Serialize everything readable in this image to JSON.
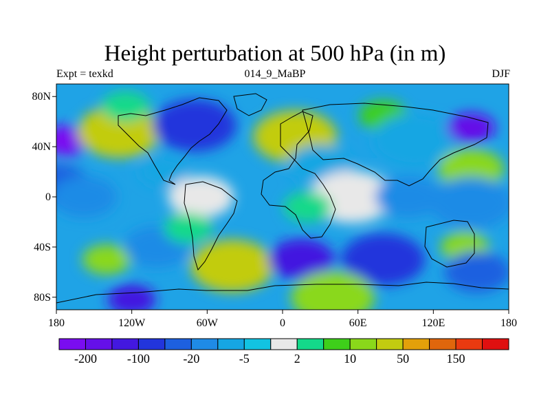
{
  "map": {
    "title": "Height perturbation at 500 hPa (in m)",
    "experiment": "Expt = texkd",
    "period": "014_9_MaBP",
    "season": "DJF",
    "projection": "cylindrical equidistant",
    "lon_range": [
      -180,
      180
    ],
    "lat_range": [
      -90,
      90
    ],
    "lon_ticks": [
      {
        "lon": -180,
        "label": "180"
      },
      {
        "lon": -120,
        "label": "120W"
      },
      {
        "lon": -60,
        "label": "60W"
      },
      {
        "lon": 0,
        "label": "0"
      },
      {
        "lon": 60,
        "label": "60E"
      },
      {
        "lon": 120,
        "label": "120E"
      },
      {
        "lon": 180,
        "label": "180"
      }
    ],
    "lat_ticks": [
      {
        "lat": 80,
        "label": "80N"
      },
      {
        "lat": 40,
        "label": "40N"
      },
      {
        "lat": 0,
        "label": "0"
      },
      {
        "lat": -40,
        "label": "40S"
      },
      {
        "lat": -80,
        "label": "80S"
      }
    ],
    "features": [
      {
        "lon": -172,
        "lat": 45,
        "level": 0
      },
      {
        "lon": -180,
        "lat": 10,
        "level": 4
      },
      {
        "lon": -130,
        "lat": 52,
        "level": 12
      },
      {
        "lon": -125,
        "lat": 72,
        "level": 9
      },
      {
        "lon": -158,
        "lat": 0,
        "level": 5
      },
      {
        "lon": -70,
        "lat": 57,
        "level": 3
      },
      {
        "lon": -95,
        "lat": 20,
        "level": 6
      },
      {
        "lon": -65,
        "lat": 0,
        "level": 8
      },
      {
        "lon": 10,
        "lat": 48,
        "level": 12
      },
      {
        "lon": 80,
        "lat": 65,
        "level": 10
      },
      {
        "lon": 30,
        "lat": 25,
        "level": 6
      },
      {
        "lon": 55,
        "lat": 0,
        "level": 8
      },
      {
        "lon": 20,
        "lat": -8,
        "level": 9
      },
      {
        "lon": 100,
        "lat": 0,
        "level": 5
      },
      {
        "lon": 105,
        "lat": 45,
        "level": 6
      },
      {
        "lon": 150,
        "lat": 55,
        "level": 1
      },
      {
        "lon": 150,
        "lat": 22,
        "level": 11
      },
      {
        "lon": 150,
        "lat": -5,
        "level": 5
      },
      {
        "lon": -140,
        "lat": -50,
        "level": 11
      },
      {
        "lon": -100,
        "lat": -40,
        "level": 5
      },
      {
        "lon": -40,
        "lat": -55,
        "level": 12
      },
      {
        "lon": -75,
        "lat": -25,
        "level": 9
      },
      {
        "lon": 15,
        "lat": -50,
        "level": 2
      },
      {
        "lon": 80,
        "lat": -50,
        "level": 3
      },
      {
        "lon": 145,
        "lat": -40,
        "level": 11
      },
      {
        "lon": 155,
        "lat": -60,
        "level": 4
      },
      {
        "lon": 40,
        "lat": -80,
        "level": 11
      },
      {
        "lon": -120,
        "lat": -82,
        "level": 2
      }
    ]
  },
  "colorbar": {
    "colors": [
      "#7a0df0",
      "#6510e8",
      "#4318e0",
      "#2235dc",
      "#1d60e0",
      "#1f8be6",
      "#16a6e3",
      "#12c3e2",
      "#e8e8e8",
      "#14d98a",
      "#3ecf1a",
      "#8ad81a",
      "#c2cc10",
      "#e3a00a",
      "#e0660c",
      "#ea3a10",
      "#e01010"
    ],
    "labels": [
      "-200",
      "-100",
      "-20",
      "-5",
      "2",
      "10",
      "50",
      "150"
    ]
  }
}
